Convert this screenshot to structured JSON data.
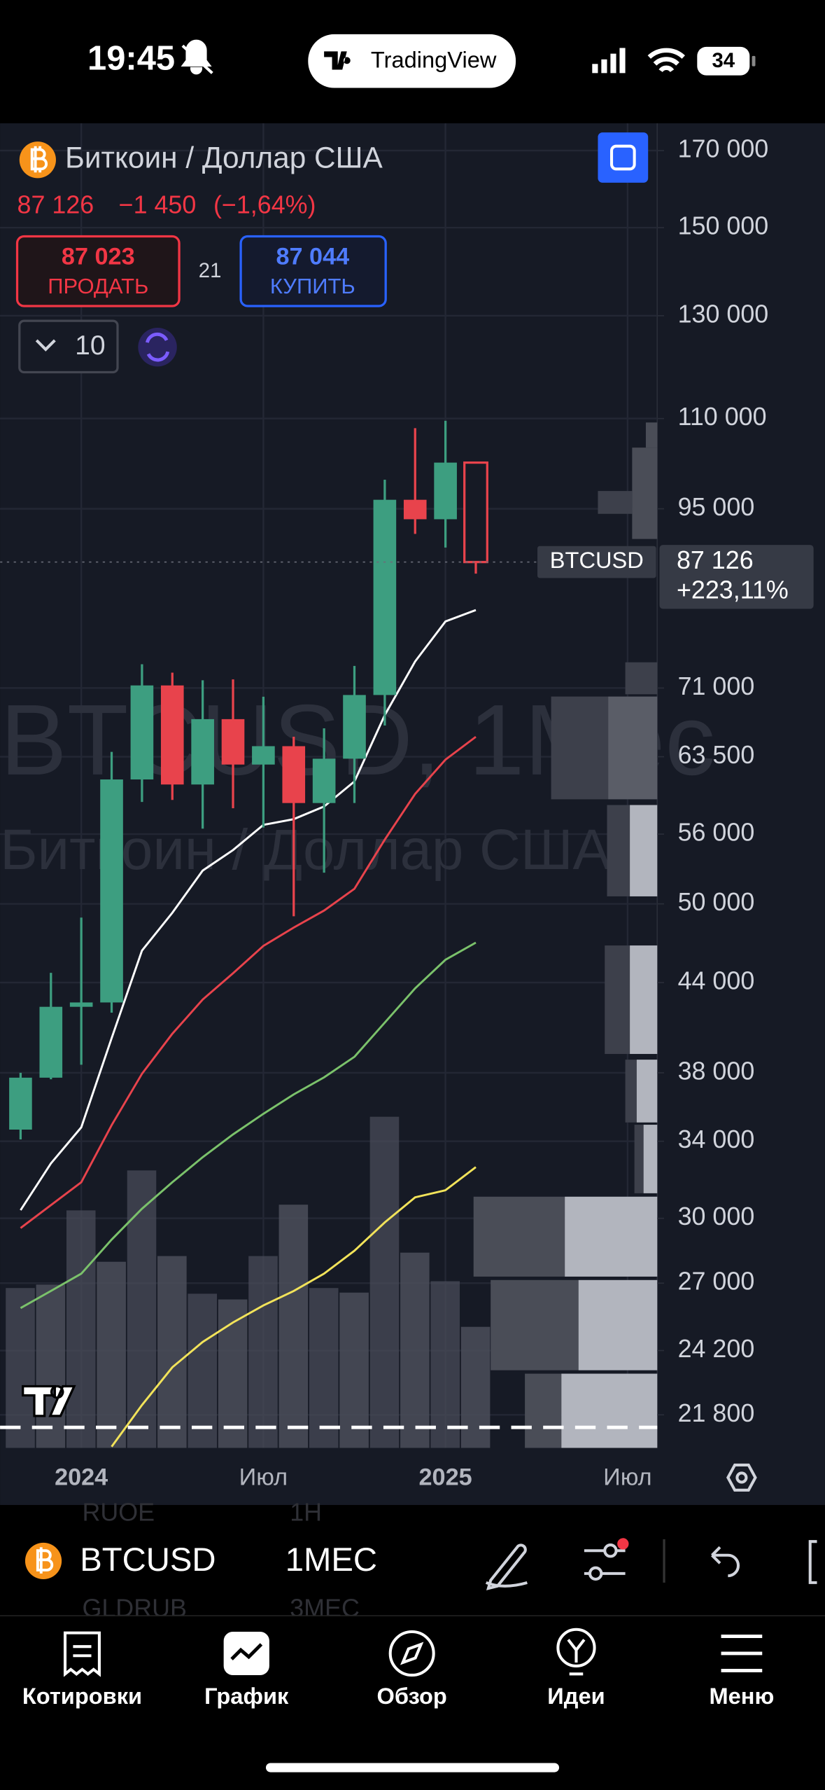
{
  "status_bar": {
    "time": "19:45",
    "app": "TradingView",
    "battery": "34"
  },
  "header": {
    "symbol_name": "Биткоин / Доллар США",
    "price": "87 126",
    "change": "−1 450",
    "change_percent": "(−1,64%)",
    "sell": {
      "price": "87 023",
      "label": "ПРОДАТЬ"
    },
    "spread": "21",
    "buy": {
      "price": "87 044",
      "label": "КУПИТЬ"
    },
    "quantity": "10"
  },
  "watermark": {
    "symbol": "BTCUSD, 1Мес",
    "name": "Биткоин / Доллар США"
  },
  "chart_data": {
    "type": "candlestick",
    "log_scale": true,
    "grid": true,
    "up_color": "#3d9e80",
    "down_color": "#e8434c",
    "categories": [
      null,
      null,
      "2024",
      null,
      null,
      null,
      null,
      null,
      "Июл",
      null,
      null,
      null,
      null,
      null,
      "2025",
      null,
      null,
      null,
      null,
      null,
      "Июл"
    ],
    "open": [
      34650,
      37700,
      42300,
      42600,
      61200,
      71300,
      60700,
      67500,
      62700,
      64600,
      58900,
      63300,
      70200,
      96400,
      93400,
      102400,
      null,
      null,
      null,
      null,
      null
    ],
    "high": [
      38000,
      44700,
      48900,
      64000,
      73800,
      72800,
      71900,
      72000,
      70000,
      65600,
      66500,
      73600,
      99600,
      108300,
      109600,
      102500,
      null,
      null,
      null,
      null,
      null
    ],
    "low": [
      34100,
      37600,
      38500,
      41900,
      59000,
      59200,
      56500,
      58400,
      56600,
      49000,
      52600,
      58900,
      66800,
      91200,
      89200,
      85500,
      null,
      null,
      null,
      null,
      null
    ],
    "close": [
      37700,
      42300,
      42600,
      61200,
      71300,
      60700,
      67500,
      62700,
      64600,
      58900,
      63300,
      70200,
      96400,
      93400,
      102400,
      87126,
      null,
      null,
      null,
      null,
      null
    ],
    "series": [
      {
        "color": "#ffffff",
        "values": [
          30400,
          32800,
          34780,
          40200,
          46350,
          49280,
          52780,
          54570,
          56850,
          57380,
          58570,
          61000,
          67950,
          74130,
          79110,
          80590,
          null,
          null,
          null,
          null,
          null
        ]
      },
      {
        "color": "#e8434c",
        "values": [
          29530,
          30650,
          31810,
          34900,
          37940,
          40490,
          42800,
          44670,
          46700,
          48110,
          49460,
          51240,
          55500,
          59780,
          63200,
          65590,
          null,
          null,
          null,
          null,
          null
        ]
      },
      {
        "color": "#7bc26b",
        "values": [
          25930,
          26660,
          27420,
          28980,
          30470,
          31810,
          33130,
          34380,
          35550,
          36690,
          37720,
          39000,
          41230,
          43590,
          45660,
          46950,
          null,
          null,
          null,
          null,
          null
        ]
      },
      {
        "color": "#f2e35a",
        "values": [
          null,
          null,
          null,
          20700,
          22150,
          23550,
          24540,
          25330,
          26040,
          26660,
          27420,
          28460,
          29800,
          31040,
          31400,
          32600,
          null,
          null,
          null,
          null,
          null
        ]
      }
    ],
    "volume": {
      "color": "#4b4f5b",
      "values": [
        140,
        143,
        208,
        163,
        243,
        168,
        135,
        130,
        168,
        213,
        140,
        136,
        290,
        171,
        146,
        106,
        null,
        null,
        null,
        null,
        null
      ]
    },
    "ylim": [
      20660,
      177700
    ],
    "yticks": [
      {
        "value": 170000,
        "label": "170 000"
      },
      {
        "value": 150000,
        "label": "150 000"
      },
      {
        "value": 130000,
        "label": "130 000"
      },
      {
        "value": 110000,
        "label": "110 000"
      },
      {
        "value": 95000,
        "label": "95 000"
      },
      {
        "value": 71000,
        "label": "71 000"
      },
      {
        "value": 63500,
        "label": "63 500"
      },
      {
        "value": 56000,
        "label": "56 000"
      },
      {
        "value": 50000,
        "label": "50 000"
      },
      {
        "value": 44000,
        "label": "44 000"
      },
      {
        "value": 38000,
        "label": "38 000"
      },
      {
        "value": 34000,
        "label": "34 000"
      },
      {
        "value": 30000,
        "label": "30 000"
      },
      {
        "value": 27000,
        "label": "27 000"
      },
      {
        "value": 24200,
        "label": "24 200"
      },
      {
        "value": 21800,
        "label": "21 800"
      }
    ],
    "last_price": {
      "symbol": "BTCUSD",
      "value": 87126,
      "label": "87 126",
      "change_label": "+223,11%"
    }
  },
  "toolbar": {
    "symbol": "BTCUSD",
    "interval": "1МЕС",
    "ghost_above": [
      "RUOE",
      "1H"
    ],
    "ghost_below": [
      "GLDRUB",
      "3МЕС"
    ]
  },
  "tab_bar": {
    "tabs": [
      "Котировки",
      "График",
      "Обзор",
      "Идеи",
      "Меню"
    ]
  }
}
